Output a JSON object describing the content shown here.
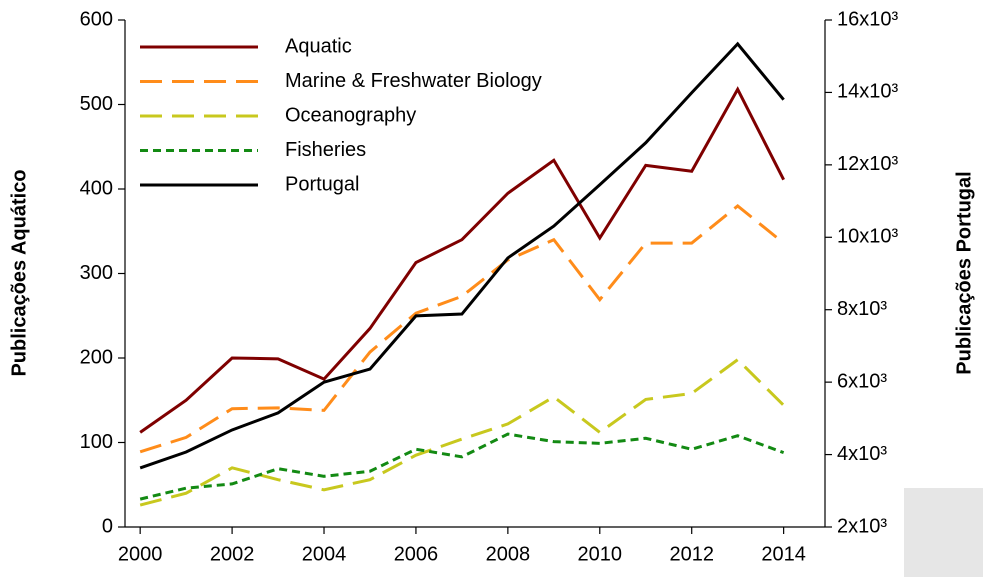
{
  "chart_data": {
    "type": "line",
    "x": [
      2000,
      2001,
      2002,
      2003,
      2004,
      2005,
      2006,
      2007,
      2008,
      2009,
      2010,
      2011,
      2012,
      2013,
      2014
    ],
    "xlim": [
      1999.67,
      2014.9
    ],
    "xticks": [
      2000,
      2002,
      2004,
      2006,
      2008,
      2010,
      2012,
      2014
    ],
    "ylim": [
      0,
      600
    ],
    "yticks": [
      0,
      100,
      200,
      300,
      400,
      500,
      600
    ],
    "y2lim": [
      2000,
      16000
    ],
    "y2ticks": [
      {
        "value": 2000,
        "label": "2x10³"
      },
      {
        "value": 4000,
        "label": "4x10³"
      },
      {
        "value": 6000,
        "label": "6x10³"
      },
      {
        "value": 8000,
        "label": "8x10³"
      },
      {
        "value": 10000,
        "label": "10x10³"
      },
      {
        "value": 12000,
        "label": "12x10³"
      },
      {
        "value": 14000,
        "label": "14x10³"
      },
      {
        "value": 16000,
        "label": "16x10³"
      }
    ],
    "ylabel": "Publicações Aquático",
    "y2label": "Publicações Portugal",
    "legend": "upper left",
    "series": [
      {
        "name": "Aquatic",
        "color": "#7f0000",
        "dash": "solid",
        "values": [
          112,
          150,
          200,
          199,
          175,
          235,
          313,
          340,
          395,
          434,
          342,
          428,
          421,
          518,
          411
        ]
      },
      {
        "name": "Marine & Freshwater Biology",
        "color": "#ff8c1a",
        "dash": "long",
        "values": [
          89,
          106,
          140,
          141,
          138,
          207,
          253,
          273,
          316,
          340,
          269,
          336,
          336,
          380,
          336
        ]
      },
      {
        "name": "Oceanography",
        "color": "#c8c81e",
        "dash": "long",
        "values": [
          26,
          40,
          70,
          56,
          44,
          56,
          85,
          104,
          122,
          154,
          112,
          151,
          158,
          198,
          144
        ]
      },
      {
        "name": "Fisheries",
        "color": "#138a13",
        "dash": "short",
        "values": [
          33,
          46,
          51,
          69,
          60,
          66,
          92,
          83,
          110,
          101,
          99,
          105,
          92,
          108,
          88
        ]
      },
      {
        "name": "Portugal",
        "color": "#000000",
        "dash": "solid",
        "axis": "y2",
        "values": [
          3630,
          4070,
          4680,
          5150,
          6000,
          6360,
          7830,
          7880,
          9430,
          10310,
          11450,
          12610,
          13990,
          15340,
          13800
        ]
      }
    ]
  }
}
